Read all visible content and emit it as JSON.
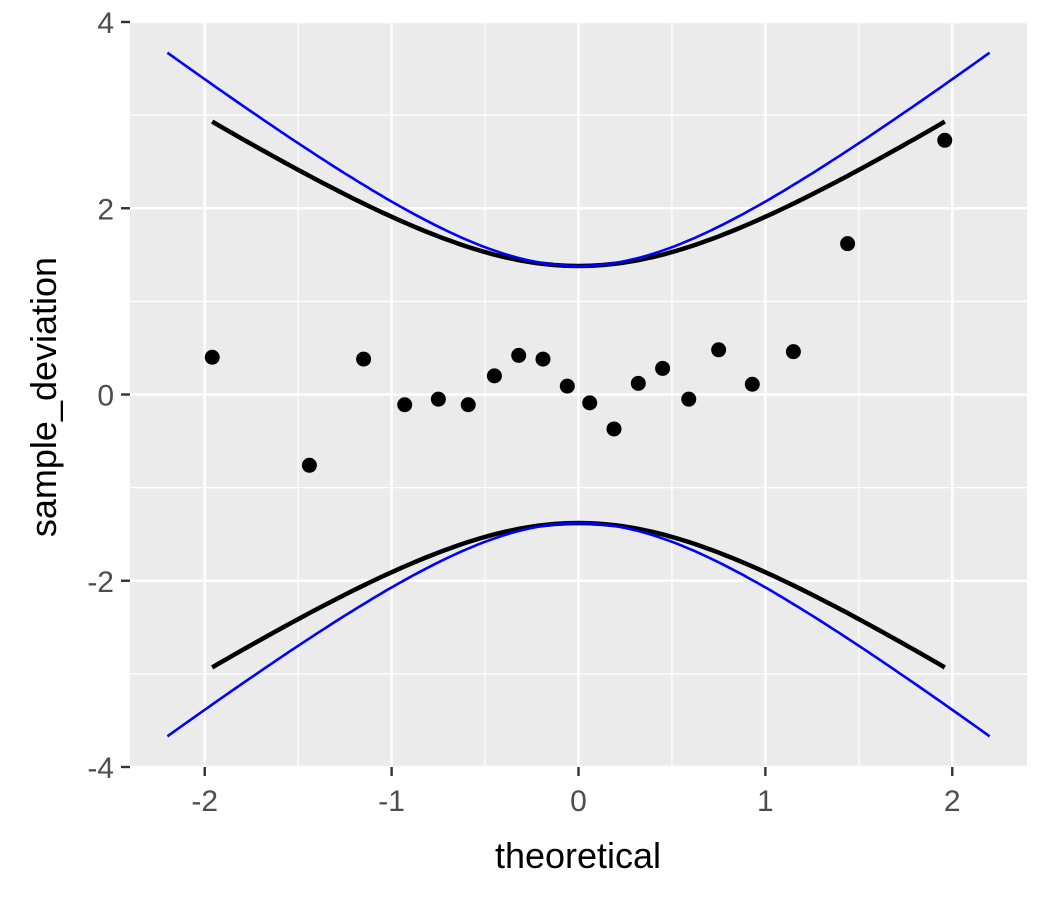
{
  "chart_data": {
    "type": "scatter",
    "title": "",
    "xlabel": "theoretical",
    "ylabel": "sample_deviation",
    "xlim": [
      -2.4,
      2.4
    ],
    "ylim": [
      -4,
      4
    ],
    "x_ticks": [
      -2,
      -1,
      0,
      1,
      2
    ],
    "y_ticks": [
      -4,
      -2,
      0,
      2,
      4
    ],
    "grid": true,
    "panel_background": "#ebebeb",
    "points": [
      {
        "x": -1.96,
        "y": 0.4
      },
      {
        "x": -1.44,
        "y": -0.76
      },
      {
        "x": -1.15,
        "y": 0.38
      },
      {
        "x": -0.93,
        "y": -0.11
      },
      {
        "x": -0.75,
        "y": -0.05
      },
      {
        "x": -0.59,
        "y": -0.11
      },
      {
        "x": -0.45,
        "y": 0.2
      },
      {
        "x": -0.32,
        "y": 0.42
      },
      {
        "x": -0.19,
        "y": 0.38
      },
      {
        "x": -0.06,
        "y": 0.09
      },
      {
        "x": 0.06,
        "y": -0.09
      },
      {
        "x": 0.19,
        "y": -0.37
      },
      {
        "x": 0.32,
        "y": 0.12
      },
      {
        "x": 0.45,
        "y": 0.28
      },
      {
        "x": 0.59,
        "y": -0.05
      },
      {
        "x": 0.75,
        "y": 0.48
      },
      {
        "x": 0.93,
        "y": 0.11
      },
      {
        "x": 1.15,
        "y": 0.46
      },
      {
        "x": 1.44,
        "y": 1.62
      },
      {
        "x": 1.96,
        "y": 2.73
      }
    ],
    "envelopes": [
      {
        "color": "#0000ff",
        "x_range": [
          -2.2,
          2.2
        ],
        "center_halfwidth": 1.38,
        "edge_halfwidth": 3.67
      },
      {
        "color": "#000000",
        "x_range": [
          -1.96,
          1.96
        ],
        "center_halfwidth": 1.38,
        "edge_halfwidth": 2.93
      }
    ],
    "colors": {
      "points": "#000000",
      "grid": "#ffffff",
      "tick_label": "#4d4d4d",
      "tick_mark": "#333333"
    }
  }
}
